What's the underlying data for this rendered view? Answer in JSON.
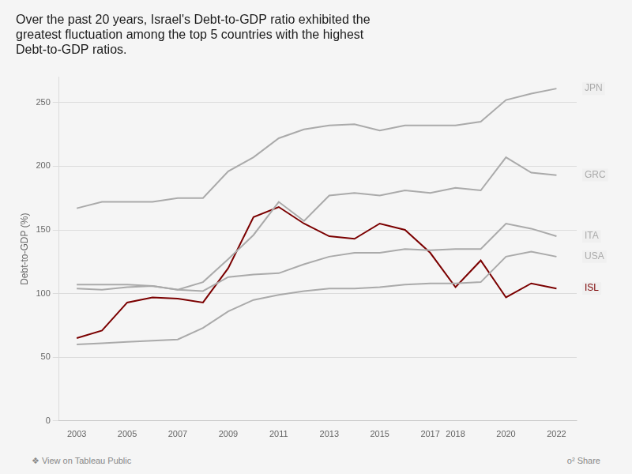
{
  "chart_data": {
    "type": "line",
    "title": [
      "Over the past 20 years, Israel's Debt-to-GDP ratio exhibited the",
      "greatest fluctuation among the top 5 countries with the highest",
      "Debt-to-GDP ratios."
    ],
    "ylabel": "Debt-to-GDP (%)",
    "x": [
      2003,
      2004,
      2005,
      2006,
      2007,
      2008,
      2009,
      2010,
      2011,
      2012,
      2013,
      2014,
      2015,
      2016,
      2017,
      2018,
      2019,
      2020,
      2021,
      2022
    ],
    "series": [
      {
        "name": "JPN",
        "color": "#aaaaaa",
        "values": [
          167,
          172,
          172,
          172,
          175,
          175,
          196,
          207,
          222,
          229,
          232,
          233,
          228,
          232,
          232,
          232,
          235,
          252,
          257,
          261
        ]
      },
      {
        "name": "GRC",
        "color": "#aaaaaa",
        "values": [
          107,
          107,
          107,
          106,
          103,
          109,
          127,
          146,
          172,
          157,
          177,
          179,
          177,
          181,
          179,
          183,
          181,
          207,
          195,
          193
        ]
      },
      {
        "name": "ITA",
        "color": "#aaaaaa",
        "values": [
          104,
          103,
          105,
          106,
          103,
          102,
          113,
          115,
          116,
          123,
          129,
          132,
          132,
          135,
          134,
          135,
          135,
          155,
          151,
          145
        ]
      },
      {
        "name": "USA",
        "color": "#aaaaaa",
        "values": [
          60,
          61,
          62,
          63,
          64,
          73,
          86,
          95,
          99,
          102,
          104,
          104,
          105,
          107,
          108,
          108,
          109,
          129,
          133,
          129
        ]
      },
      {
        "name": "ISL",
        "color": "#7b0000",
        "values": [
          65,
          71,
          93,
          97,
          96,
          93,
          120,
          160,
          168,
          155,
          145,
          143,
          155,
          150,
          132,
          105,
          126,
          97,
          108,
          104
        ]
      }
    ],
    "xlim": [
      2002.3,
      2022.8
    ],
    "xticks": [
      2003,
      2005,
      2007,
      2009,
      2011,
      2013,
      2015,
      2017,
      2018,
      2020,
      2022
    ],
    "ylim": [
      0,
      270
    ],
    "yticks": [
      0,
      50,
      100,
      150,
      200,
      250
    ],
    "grid": "y",
    "annotations": [
      "❖ View on Tableau Public",
      "o² Share"
    ]
  }
}
